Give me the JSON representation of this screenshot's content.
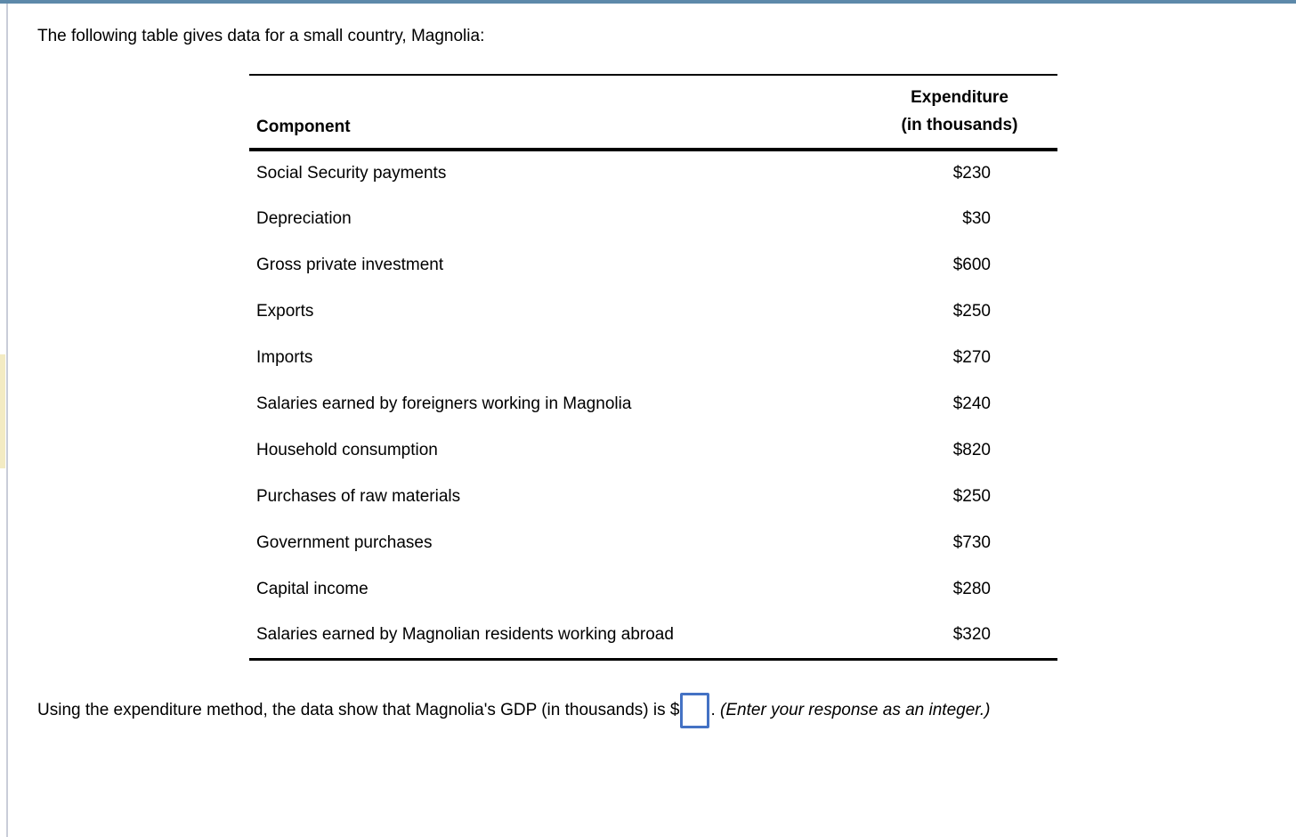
{
  "page": {
    "title": "The following table gives data for a small country, Magnolia:"
  },
  "table": {
    "headers": {
      "component": "Component",
      "expenditure_line1": "Expenditure",
      "expenditure_line2": "(in thousands)"
    },
    "rows": [
      {
        "component": "Social Security payments",
        "expenditure": "$230"
      },
      {
        "component": "Depreciation",
        "expenditure": "$30"
      },
      {
        "component": "Gross private investment",
        "expenditure": "$600"
      },
      {
        "component": "Exports",
        "expenditure": "$250"
      },
      {
        "component": "Imports",
        "expenditure": "$270"
      },
      {
        "component": "Salaries earned by foreigners working in Magnolia",
        "expenditure": "$240"
      },
      {
        "component": "Household consumption",
        "expenditure": "$820"
      },
      {
        "component": "Purchases of raw materials",
        "expenditure": "$250"
      },
      {
        "component": "Government purchases",
        "expenditure": "$730"
      },
      {
        "component": "Capital income",
        "expenditure": "$280"
      },
      {
        "component": "Salaries earned by Magnolian residents working abroad",
        "expenditure": "$320"
      }
    ]
  },
  "question": {
    "before_input": "Using the expenditure method, the data show that Magnolia's GDP (in thousands) is $",
    "input_value": "",
    "after_input": ". ",
    "italic_note": "(Enter your response as an integer.)"
  },
  "colors": {
    "top_bar": "#5d89aa",
    "left_rule": "#c9cdd8",
    "left_highlight": "#f3ebc3",
    "table_rule": "#000000",
    "input_border": "#4472c4",
    "text": "#000000"
  }
}
